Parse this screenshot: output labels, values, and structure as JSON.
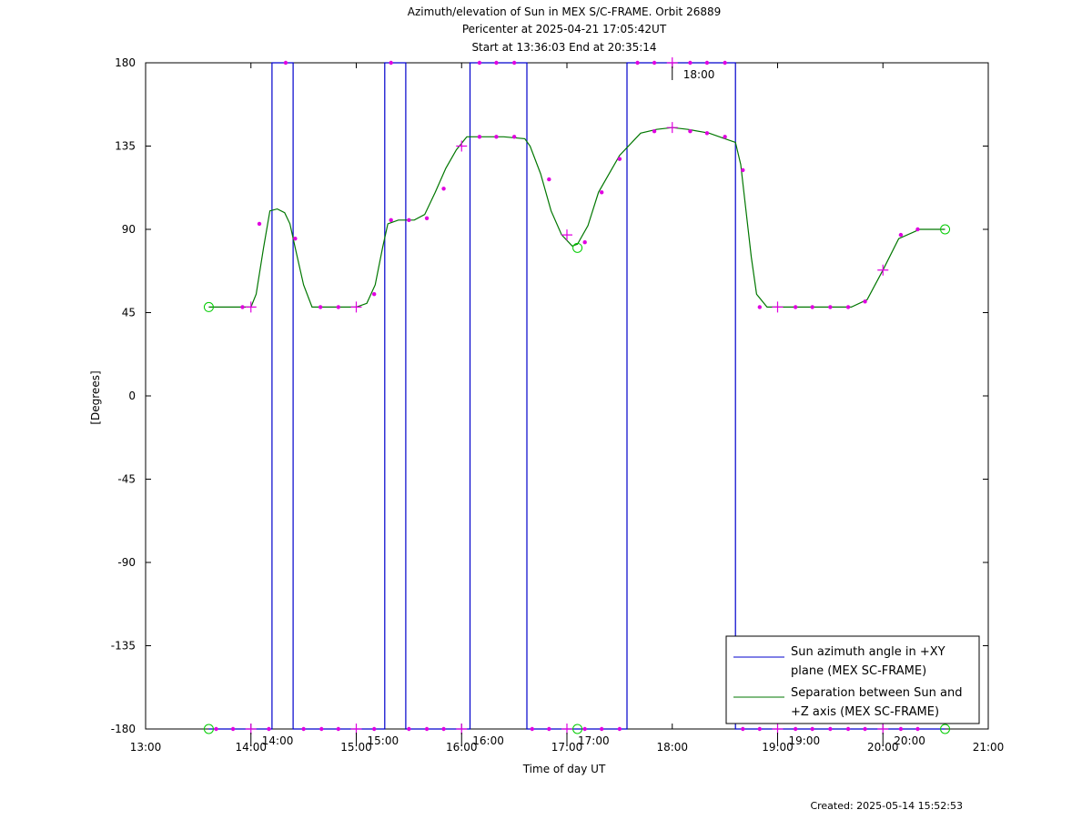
{
  "chart_data": {
    "type": "line",
    "title_lines": [
      "Azimuth/elevation of Sun in MEX S/C-FRAME.  Orbit 26889",
      "Pericenter at 2025-04-21 17:05:42UT",
      "Start at 13:36:03 End at 20:35:14"
    ],
    "xlabel": "Time of day UT",
    "ylabel": "[Degrees]",
    "xlim": [
      13.0,
      21.0
    ],
    "ylim": [
      -180,
      180
    ],
    "x_ticks": [
      {
        "value": 13,
        "label": "13:00"
      },
      {
        "value": 14,
        "label": "14:00"
      },
      {
        "value": 15,
        "label": "15:00"
      },
      {
        "value": 16,
        "label": "16:00"
      },
      {
        "value": 17,
        "label": "17:00"
      },
      {
        "value": 18,
        "label": "18:00"
      },
      {
        "value": 19,
        "label": "19:00"
      },
      {
        "value": 20,
        "label": "20:00"
      },
      {
        "value": 21,
        "label": "21:00"
      }
    ],
    "y_ticks": [
      {
        "value": 180,
        "label": "180"
      },
      {
        "value": 135,
        "label": "135"
      },
      {
        "value": 90,
        "label": "90"
      },
      {
        "value": 45,
        "label": "45"
      },
      {
        "value": 0,
        "label": "0"
      },
      {
        "value": -45,
        "label": "-45"
      },
      {
        "value": -90,
        "label": "-90"
      },
      {
        "value": -135,
        "label": "-135"
      },
      {
        "value": -180,
        "label": "-180"
      }
    ],
    "grid": false,
    "legend_position": "bottom-right",
    "series": [
      {
        "name": "Sun azimuth angle in +XY plane (MEX SC-FRAME)",
        "legend_lines": [
          "Sun azimuth angle in +XY",
          "plane (MEX SC-FRAME)"
        ],
        "color": "#0000cc",
        "x": [
          13.6,
          14.2,
          14.2,
          14.4,
          14.4,
          15.27,
          15.27,
          15.47,
          15.47,
          16.08,
          16.08,
          16.62,
          16.62,
          17.57,
          17.57,
          18.6,
          18.6,
          20.59
        ],
        "y": [
          -180,
          -180,
          180,
          180,
          -180,
          -180,
          180,
          180,
          -180,
          -180,
          180,
          180,
          -180,
          -180,
          180,
          180,
          -180,
          -180
        ]
      },
      {
        "name": "Separation between Sun and +Z axis (MEX SC-FRAME)",
        "legend_lines": [
          "Separation between Sun and",
          "+Z axis (MEX SC-FRAME)"
        ],
        "color": "#007700",
        "x": [
          13.6,
          13.8,
          14.0,
          14.05,
          14.12,
          14.18,
          14.25,
          14.32,
          14.37,
          14.42,
          14.5,
          14.58,
          14.7,
          14.9,
          15.0,
          15.1,
          15.18,
          15.25,
          15.3,
          15.4,
          15.55,
          15.65,
          15.75,
          15.85,
          15.95,
          16.05,
          16.1,
          16.2,
          16.4,
          16.6,
          16.65,
          16.75,
          16.85,
          16.95,
          17.05,
          17.1,
          17.2,
          17.3,
          17.5,
          17.7,
          17.85,
          18.0,
          18.15,
          18.35,
          18.5,
          18.6,
          18.65,
          18.7,
          18.75,
          18.8,
          18.9,
          19.2,
          19.5,
          19.7,
          19.85,
          20.0,
          20.15,
          20.35,
          20.59
        ],
        "y": [
          48,
          48,
          48,
          55,
          80,
          100,
          101,
          99,
          93,
          80,
          60,
          48,
          48,
          48,
          48,
          50,
          60,
          80,
          93,
          95,
          95,
          98,
          110,
          123,
          133,
          140,
          140,
          140,
          140,
          139,
          135,
          120,
          100,
          87,
          81,
          82,
          92,
          110,
          130,
          142,
          144,
          145,
          144,
          142,
          139,
          137,
          125,
          100,
          75,
          55,
          48,
          48,
          48,
          48,
          52,
          68,
          85,
          90,
          90
        ]
      }
    ],
    "markers": {
      "magenta_dots": [
        {
          "x": 13.92,
          "y": 48
        },
        {
          "x": 14.08,
          "y": 93
        },
        {
          "x": 14.42,
          "y": 85
        },
        {
          "x": 14.66,
          "y": 48
        },
        {
          "x": 14.83,
          "y": 48
        },
        {
          "x": 15.17,
          "y": 55
        },
        {
          "x": 15.33,
          "y": 95
        },
        {
          "x": 15.5,
          "y": 95
        },
        {
          "x": 15.67,
          "y": 96
        },
        {
          "x": 15.83,
          "y": 112
        },
        {
          "x": 16.17,
          "y": 140
        },
        {
          "x": 16.33,
          "y": 140
        },
        {
          "x": 16.5,
          "y": 140
        },
        {
          "x": 16.83,
          "y": 117
        },
        {
          "x": 17.17,
          "y": 83
        },
        {
          "x": 17.33,
          "y": 110
        },
        {
          "x": 17.5,
          "y": 128
        },
        {
          "x": 17.83,
          "y": 143
        },
        {
          "x": 18.17,
          "y": 143
        },
        {
          "x": 18.33,
          "y": 142
        },
        {
          "x": 18.5,
          "y": 140
        },
        {
          "x": 18.67,
          "y": 122
        },
        {
          "x": 18.83,
          "y": 48
        },
        {
          "x": 19.17,
          "y": 48
        },
        {
          "x": 19.33,
          "y": 48
        },
        {
          "x": 19.5,
          "y": 48
        },
        {
          "x": 19.67,
          "y": 48
        },
        {
          "x": 19.83,
          "y": 51
        },
        {
          "x": 20.17,
          "y": 87
        },
        {
          "x": 20.33,
          "y": 90
        },
        {
          "x": 13.67,
          "y": -180
        },
        {
          "x": 13.83,
          "y": -180
        },
        {
          "x": 14.17,
          "y": -180
        },
        {
          "x": 14.5,
          "y": -180
        },
        {
          "x": 14.67,
          "y": -180
        },
        {
          "x": 14.83,
          "y": -180
        },
        {
          "x": 15.17,
          "y": -180
        },
        {
          "x": 15.5,
          "y": -180
        },
        {
          "x": 15.67,
          "y": -180
        },
        {
          "x": 15.83,
          "y": -180
        },
        {
          "x": 16.67,
          "y": -180
        },
        {
          "x": 16.83,
          "y": -180
        },
        {
          "x": 17.17,
          "y": -180
        },
        {
          "x": 17.33,
          "y": -180
        },
        {
          "x": 17.5,
          "y": -180
        },
        {
          "x": 18.67,
          "y": -180
        },
        {
          "x": 18.83,
          "y": -180
        },
        {
          "x": 19.17,
          "y": -180
        },
        {
          "x": 19.33,
          "y": -180
        },
        {
          "x": 19.5,
          "y": -180
        },
        {
          "x": 19.67,
          "y": -180
        },
        {
          "x": 19.83,
          "y": -180
        },
        {
          "x": 20.17,
          "y": -180
        },
        {
          "x": 20.33,
          "y": -180
        },
        {
          "x": 14.33,
          "y": 180
        },
        {
          "x": 15.33,
          "y": 180
        },
        {
          "x": 16.33,
          "y": 180
        },
        {
          "x": 16.5,
          "y": 180
        },
        {
          "x": 16.17,
          "y": 180
        },
        {
          "x": 17.67,
          "y": 180
        },
        {
          "x": 17.83,
          "y": 180
        },
        {
          "x": 18.17,
          "y": 180
        },
        {
          "x": 18.33,
          "y": 180
        },
        {
          "x": 18.5,
          "y": 180
        }
      ],
      "magenta_crosses": [
        {
          "x": 14.0,
          "y": 48
        },
        {
          "x": 15.0,
          "y": 48
        },
        {
          "x": 16.0,
          "y": 135
        },
        {
          "x": 17.0,
          "y": 87
        },
        {
          "x": 18.0,
          "y": 145
        },
        {
          "x": 19.0,
          "y": 48
        },
        {
          "x": 20.0,
          "y": 68
        },
        {
          "x": 14.0,
          "y": -180
        },
        {
          "x": 15.0,
          "y": -180
        },
        {
          "x": 16.0,
          "y": -180
        },
        {
          "x": 17.0,
          "y": -180
        },
        {
          "x": 18.0,
          "y": 180
        },
        {
          "x": 19.0,
          "y": -180
        },
        {
          "x": 20.0,
          "y": -180
        }
      ],
      "green_circles": [
        {
          "x": 13.6,
          "y": 48
        },
        {
          "x": 17.1,
          "y": 80
        },
        {
          "x": 20.59,
          "y": 90
        },
        {
          "x": 13.6,
          "y": -180
        },
        {
          "x": 17.1,
          "y": -180
        },
        {
          "x": 20.59,
          "y": -180
        }
      ]
    },
    "time_annotations": [
      {
        "x": 14.0,
        "y": -180,
        "label": "14:00"
      },
      {
        "x": 15.0,
        "y": -180,
        "label": "15:00"
      },
      {
        "x": 16.0,
        "y": -180,
        "label": "16:00"
      },
      {
        "x": 17.0,
        "y": -180,
        "label": "17:00"
      },
      {
        "x": 18.0,
        "y": 180,
        "label": "18:00"
      },
      {
        "x": 19.0,
        "y": -180,
        "label": "19:00"
      },
      {
        "x": 20.0,
        "y": -180,
        "label": "20:00"
      }
    ],
    "created": "Created: 2025-05-14 15:52:53"
  }
}
